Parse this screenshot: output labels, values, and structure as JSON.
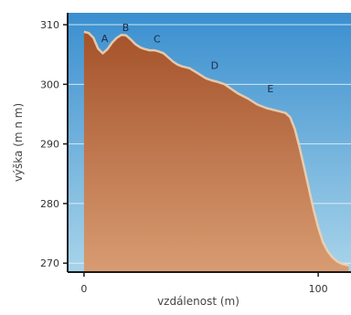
{
  "chart_data": {
    "type": "area",
    "title": "",
    "xlabel": "vzdálenost (m)",
    "ylabel": "výška (m n m)",
    "xlim": [
      -7,
      114
    ],
    "ylim": [
      268.5,
      312
    ],
    "x_ticks": [
      0,
      100
    ],
    "y_ticks": [
      270,
      280,
      290,
      300,
      310
    ],
    "grid": true,
    "colors": {
      "sky_top": "#3a8fcf",
      "sky_bottom": "#a8d4ea",
      "terrain_top": "#a5522a",
      "terrain_bottom": "#d89c72",
      "surface_line": "#f0d2b0",
      "grid": "#e8f4fb",
      "axis": "#1a1a1a"
    },
    "series": [
      {
        "x": [
          0,
          2,
          4,
          6,
          8,
          10,
          12,
          14,
          16,
          18,
          20,
          22,
          24,
          26,
          28,
          30,
          32,
          34,
          36,
          38,
          40,
          42,
          45,
          48,
          52,
          55,
          57,
          60,
          63,
          66,
          70,
          74,
          78,
          82,
          86,
          88,
          90,
          92,
          94,
          96,
          98,
          100,
          102,
          104,
          106,
          108,
          110,
          113
        ],
        "y": [
          308.8,
          308.6,
          307.8,
          306.0,
          305.2,
          305.9,
          307.0,
          307.8,
          308.3,
          308.2,
          307.5,
          306.7,
          306.2,
          305.9,
          305.7,
          305.7,
          305.5,
          305.2,
          304.5,
          303.8,
          303.3,
          303.0,
          302.7,
          302.0,
          301.0,
          300.6,
          300.4,
          300.0,
          299.2,
          298.4,
          297.6,
          296.6,
          296.0,
          295.6,
          295.2,
          294.5,
          292.5,
          289.5,
          286.0,
          282.5,
          279.0,
          276.0,
          273.5,
          272.0,
          271.0,
          270.3,
          269.9,
          269.6
        ]
      }
    ],
    "annotations": [
      {
        "text": "A",
        "x": 8.8,
        "y": 307.1
      },
      {
        "text": "B",
        "x": 17.8,
        "y": 308.9
      },
      {
        "text": "C",
        "x": 31.2,
        "y": 307.0
      },
      {
        "text": "D",
        "x": 55.8,
        "y": 302.6
      },
      {
        "text": "E",
        "x": 79.6,
        "y": 298.7
      }
    ]
  }
}
